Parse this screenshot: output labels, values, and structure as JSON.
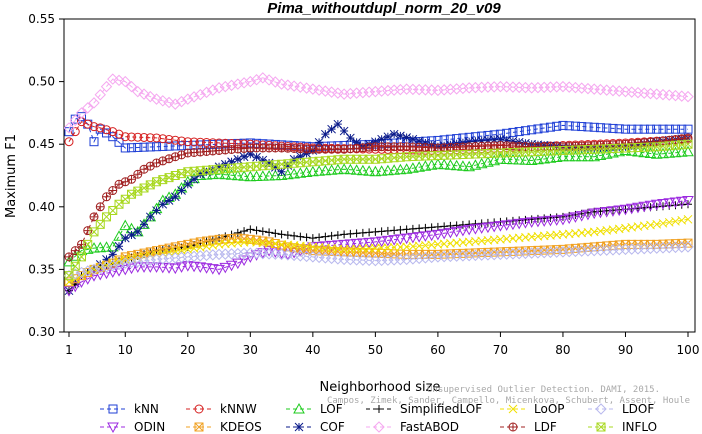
{
  "chart_data": {
    "type": "line",
    "title": "Pima_withoutdupl_norm_20_v09",
    "xlabel": "Neighborhood size",
    "ylabel": "Maximum F1",
    "xlim": [
      1,
      100
    ],
    "ylim": [
      0.3,
      0.55
    ],
    "x_ticks": [
      "1",
      "10",
      "20",
      "30",
      "40",
      "50",
      "60",
      "70",
      "80",
      "90",
      "100"
    ],
    "y_ticks": [
      "0.30",
      "0.35",
      "0.40",
      "0.45",
      "0.50",
      "0.55"
    ],
    "legend_position": "bottom",
    "watermark": [
      "Unsupervised Outlier Detection. DAMI, 2015.",
      "Campos, Zimek, Sander, Campello, Micenkova, Schubert, Assent, Houle"
    ],
    "series": [
      {
        "name": "kNN",
        "color": "#1f3fd6",
        "marker": "square",
        "x": [
          1,
          2,
          3,
          4,
          5,
          6,
          8,
          10,
          15,
          20,
          30,
          40,
          50,
          60,
          70,
          80,
          90,
          100
        ],
        "y": [
          0.46,
          0.47,
          0.472,
          0.466,
          0.452,
          0.462,
          0.456,
          0.447,
          0.448,
          0.449,
          0.451,
          0.448,
          0.45,
          0.453,
          0.458,
          0.465,
          0.462,
          0.462
        ]
      },
      {
        "name": "kNNW",
        "color": "#d62020",
        "marker": "circle",
        "x": [
          1,
          2,
          3,
          4,
          5,
          6,
          8,
          10,
          15,
          20,
          30,
          40,
          50,
          60,
          70,
          80,
          90,
          100
        ],
        "y": [
          0.452,
          0.46,
          0.468,
          0.466,
          0.464,
          0.463,
          0.46,
          0.456,
          0.455,
          0.452,
          0.45,
          0.447,
          0.446,
          0.445,
          0.447,
          0.449,
          0.451,
          0.454
        ]
      },
      {
        "name": "LOF",
        "color": "#1ecb1e",
        "marker": "triangle",
        "x": [
          1,
          3,
          5,
          8,
          10,
          12,
          14,
          16,
          18,
          20,
          22,
          25,
          30,
          35,
          40,
          45,
          50,
          55,
          60,
          65,
          70,
          75,
          80,
          85,
          90,
          95,
          100
        ],
        "y": [
          0.356,
          0.365,
          0.367,
          0.368,
          0.385,
          0.38,
          0.392,
          0.405,
          0.41,
          0.42,
          0.425,
          0.426,
          0.424,
          0.425,
          0.428,
          0.43,
          0.428,
          0.43,
          0.434,
          0.432,
          0.438,
          0.437,
          0.44,
          0.44,
          0.445,
          0.442,
          0.444
        ]
      },
      {
        "name": "COF",
        "color": "#0a1a8a",
        "marker": "star",
        "x": [
          1,
          3,
          5,
          8,
          10,
          12,
          14,
          16,
          18,
          20,
          22,
          25,
          28,
          30,
          33,
          35,
          37,
          40,
          42,
          44,
          46,
          48,
          50,
          53,
          56,
          60,
          65,
          70,
          75,
          80,
          85,
          90,
          95,
          100
        ],
        "y": [
          0.333,
          0.345,
          0.35,
          0.362,
          0.375,
          0.38,
          0.392,
          0.402,
          0.408,
          0.418,
          0.426,
          0.432,
          0.438,
          0.442,
          0.435,
          0.428,
          0.438,
          0.445,
          0.458,
          0.466,
          0.455,
          0.448,
          0.452,
          0.458,
          0.454,
          0.448,
          0.452,
          0.454,
          0.45,
          0.448,
          0.447,
          0.448,
          0.452,
          0.455
        ]
      },
      {
        "name": "FastABOD",
        "color": "#f5a8f0",
        "marker": "diamond",
        "x": [
          1,
          3,
          5,
          7,
          8,
          10,
          12,
          15,
          18,
          20,
          25,
          30,
          32,
          35,
          40,
          45,
          50,
          55,
          60,
          65,
          70,
          75,
          80,
          85,
          90,
          95,
          100
        ],
        "y": [
          0.463,
          0.475,
          0.483,
          0.496,
          0.502,
          0.5,
          0.492,
          0.486,
          0.482,
          0.486,
          0.495,
          0.5,
          0.503,
          0.498,
          0.494,
          0.49,
          0.492,
          0.494,
          0.493,
          0.495,
          0.496,
          0.495,
          0.496,
          0.494,
          0.492,
          0.49,
          0.488
        ]
      },
      {
        "name": "LDF",
        "color": "#a02020",
        "marker": "circleplus",
        "x": [
          1,
          3,
          5,
          7,
          9,
          11,
          13,
          15,
          18,
          20,
          25,
          30,
          35,
          40,
          45,
          50,
          55,
          60,
          65,
          70,
          75,
          80,
          85,
          90,
          95,
          100
        ],
        "y": [
          0.36,
          0.37,
          0.392,
          0.408,
          0.418,
          0.422,
          0.43,
          0.435,
          0.44,
          0.443,
          0.445,
          0.447,
          0.447,
          0.446,
          0.446,
          0.448,
          0.448,
          0.447,
          0.448,
          0.449,
          0.448,
          0.448,
          0.449,
          0.45,
          0.452,
          0.455
        ]
      },
      {
        "name": "SimplifiedLOF",
        "color": "#000000",
        "marker": "plus",
        "x": [
          1,
          2,
          3,
          5,
          8,
          10,
          15,
          20,
          25,
          30,
          35,
          40,
          45,
          50,
          55,
          60,
          65,
          70,
          75,
          80,
          85,
          90,
          95,
          100
        ],
        "y": [
          0.333,
          0.338,
          0.345,
          0.35,
          0.355,
          0.358,
          0.365,
          0.368,
          0.375,
          0.382,
          0.378,
          0.375,
          0.378,
          0.38,
          0.382,
          0.384,
          0.386,
          0.388,
          0.39,
          0.392,
          0.396,
          0.398,
          0.4,
          0.402
        ]
      },
      {
        "name": "ODIN",
        "color": "#9c2ae0",
        "marker": "triangle-down",
        "x": [
          1,
          3,
          5,
          8,
          10,
          12,
          15,
          18,
          20,
          22,
          25,
          28,
          30,
          33,
          36,
          40,
          45,
          50,
          55,
          60,
          65,
          70,
          75,
          80,
          85,
          90,
          95,
          100
        ],
        "y": [
          0.333,
          0.34,
          0.345,
          0.348,
          0.35,
          0.352,
          0.352,
          0.351,
          0.353,
          0.352,
          0.35,
          0.355,
          0.36,
          0.365,
          0.362,
          0.368,
          0.37,
          0.372,
          0.375,
          0.378,
          0.382,
          0.385,
          0.388,
          0.39,
          0.395,
          0.398,
          0.402,
          0.405
        ]
      },
      {
        "name": "KDEOS",
        "color": "#f0a020",
        "marker": "square-x",
        "x": [
          1,
          3,
          5,
          8,
          10,
          12,
          15,
          18,
          20,
          22,
          25,
          28,
          30,
          33,
          36,
          40,
          45,
          50,
          55,
          60,
          65,
          70,
          75,
          80,
          85,
          90,
          95,
          100
        ],
        "y": [
          0.34,
          0.345,
          0.35,
          0.355,
          0.36,
          0.362,
          0.365,
          0.368,
          0.37,
          0.372,
          0.374,
          0.375,
          0.374,
          0.372,
          0.368,
          0.365,
          0.364,
          0.363,
          0.362,
          0.362,
          0.363,
          0.364,
          0.365,
          0.366,
          0.368,
          0.37,
          0.37,
          0.371
        ]
      },
      {
        "name": "LoOP",
        "color": "#f0e000",
        "marker": "x",
        "x": [
          1,
          3,
          5,
          8,
          10,
          15,
          20,
          25,
          30,
          35,
          40,
          45,
          50,
          55,
          60,
          65,
          70,
          75,
          80,
          85,
          90,
          95,
          100
        ],
        "y": [
          0.34,
          0.345,
          0.35,
          0.355,
          0.358,
          0.362,
          0.366,
          0.37,
          0.372,
          0.37,
          0.368,
          0.366,
          0.367,
          0.368,
          0.37,
          0.372,
          0.374,
          0.376,
          0.378,
          0.38,
          0.383,
          0.386,
          0.39
        ]
      },
      {
        "name": "LDOF",
        "color": "#b9b9ee",
        "marker": "diamond",
        "x": [
          1,
          5,
          10,
          15,
          20,
          25,
          30,
          35,
          40,
          45,
          50,
          55,
          60,
          65,
          70,
          75,
          80,
          85,
          90,
          95,
          100
        ],
        "y": [
          0.345,
          0.35,
          0.355,
          0.358,
          0.36,
          0.362,
          0.363,
          0.362,
          0.36,
          0.358,
          0.357,
          0.358,
          0.36,
          0.361,
          0.362,
          0.363,
          0.364,
          0.365,
          0.366,
          0.367,
          0.368
        ]
      },
      {
        "name": "INFLO",
        "color": "#a8d820",
        "marker": "square-x",
        "x": [
          1,
          3,
          5,
          7,
          9,
          11,
          13,
          15,
          18,
          20,
          25,
          30,
          35,
          40,
          45,
          50,
          55,
          60,
          65,
          70,
          75,
          80,
          85,
          90,
          95,
          100
        ],
        "y": [
          0.345,
          0.36,
          0.38,
          0.392,
          0.402,
          0.41,
          0.415,
          0.42,
          0.425,
          0.428,
          0.43,
          0.432,
          0.434,
          0.436,
          0.438,
          0.438,
          0.44,
          0.441,
          0.442,
          0.443,
          0.444,
          0.445,
          0.446,
          0.447,
          0.448,
          0.45
        ]
      }
    ],
    "legend_order": [
      "kNN",
      "kNNW",
      "LOF",
      "SimplifiedLOF",
      "LoOP",
      "LDOF",
      "ODIN",
      "KDEOS",
      "COF",
      "FastABOD",
      "LDF",
      "INFLO"
    ]
  }
}
